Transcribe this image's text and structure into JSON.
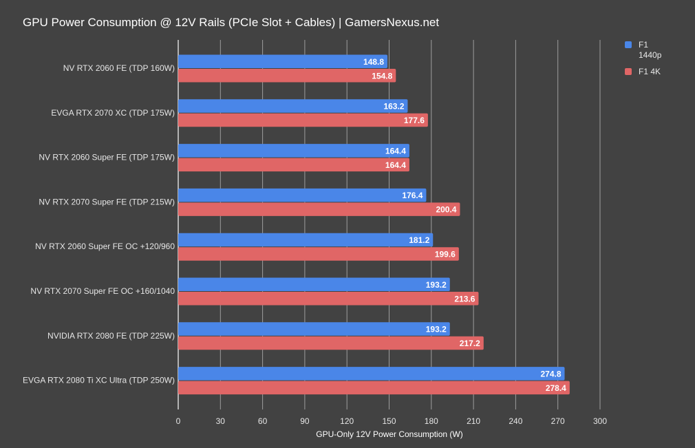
{
  "chart_data": {
    "type": "bar",
    "orientation": "horizontal",
    "title": "GPU Power Consumption @ 12V Rails (PCIe Slot + Cables) | GamersNexus.net",
    "xlabel": "GPU-Only 12V Power Consumption (W)",
    "ylabel": "",
    "xlim": [
      0,
      300
    ],
    "xticks": [
      0,
      30,
      60,
      90,
      120,
      150,
      180,
      210,
      240,
      270,
      300
    ],
    "grid": true,
    "legend_position": "top-right",
    "categories": [
      "NV RTX 2060 FE (TDP 160W)",
      "EVGA RTX 2070 XC (TDP 175W)",
      "NV RTX 2060 Super FE (TDP 175W)",
      "NV RTX 2070 Super FE (TDP 215W)",
      "NV RTX 2060 Super FE OC +120/960",
      "NV RTX 2070 Super FE OC +160/1040",
      "NVIDIA RTX 2080 FE (TDP 225W)",
      "EVGA RTX 2080 Ti XC Ultra (TDP 250W)"
    ],
    "series": [
      {
        "name": "F1 1440p",
        "color": "#4a86e8",
        "values": [
          148.8,
          163.2,
          164.4,
          176.4,
          181.2,
          193.2,
          193.2,
          274.8
        ]
      },
      {
        "name": "F1 4K",
        "color": "#e06666",
        "values": [
          154.8,
          177.6,
          164.4,
          200.4,
          199.6,
          213.6,
          217.2,
          278.4
        ]
      }
    ]
  },
  "legend": {
    "items": [
      {
        "label": "F1\n1440p",
        "color": "#4a86e8"
      },
      {
        "label": "F1 4K",
        "color": "#e06666"
      }
    ]
  }
}
